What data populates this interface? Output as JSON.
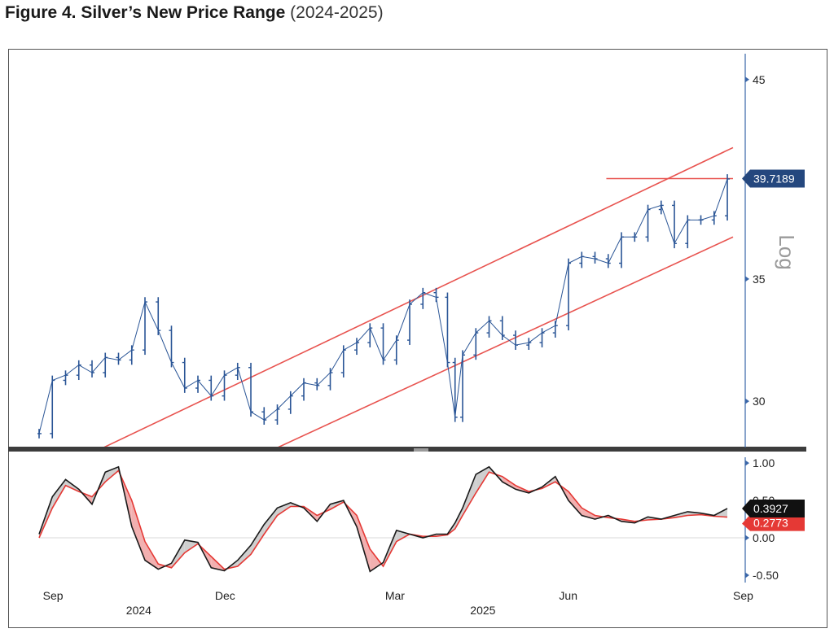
{
  "title": {
    "bold": "Figure 4. Silver’s New Price Range",
    "light": "(2024-2025)"
  },
  "colors": {
    "price": "#2a5596",
    "channel": "#e8534f",
    "osc_main": "#1a1a1a",
    "osc_signal": "#e53935",
    "fill_up": "#cfcfcf",
    "fill_down": "#f2b0b0",
    "axis": "#3a66a8",
    "badge_price": "#24477e",
    "badge_osc": "#111111"
  },
  "scale_label": "Log",
  "badges": {
    "price": "39.7189",
    "osc_main": "0.3927",
    "osc_signal_partial": "0.2773",
    "osc_hidden_tick": "0.50"
  },
  "chart_data": [
    {
      "type": "line",
      "style": "ohlc_bars",
      "yscale": "log",
      "ylim": [
        28.3,
        46.3
      ],
      "yticks": [
        30,
        35,
        45
      ],
      "ytick_labels": [
        "30",
        "35",
        "45"
      ],
      "xlim": [
        "2024-08-30",
        "2025-09-01"
      ],
      "x_ticks": [
        {
          "label": "Sep",
          "date": "2024-09-01"
        },
        {
          "label": "Dec",
          "date": "2024-12-01"
        },
        {
          "label": "Mar",
          "date": "2025-03-01"
        },
        {
          "label": "Jun",
          "date": "2025-06-01"
        },
        {
          "label": "Sep",
          "date": "2025-09-01"
        }
      ],
      "x_years": [
        {
          "label": "2024",
          "date": "2024-10-15"
        },
        {
          "label": "2025",
          "date": "2025-04-15"
        }
      ],
      "series": [
        {
          "x": [
            "2024-08-30",
            "2024-09-06",
            "2024-09-13",
            "2024-09-20",
            "2024-09-27",
            "2024-10-04",
            "2024-10-11",
            "2024-10-18",
            "2024-10-25",
            "2024-11-01",
            "2024-11-08",
            "2024-11-15",
            "2024-11-22",
            "2024-11-29",
            "2024-12-06",
            "2024-12-13",
            "2024-12-20",
            "2024-12-27",
            "2025-01-03",
            "2025-01-10",
            "2025-01-17",
            "2025-01-24",
            "2025-01-31",
            "2025-02-07",
            "2025-02-14",
            "2025-02-21",
            "2025-02-28",
            "2025-03-07",
            "2025-03-14",
            "2025-03-21",
            "2025-03-28",
            "2025-04-03",
            "2025-04-07",
            "2025-04-11",
            "2025-04-18",
            "2025-04-25",
            "2025-05-02",
            "2025-05-09",
            "2025-05-16",
            "2025-05-23",
            "2025-05-30",
            "2025-06-06",
            "2025-06-13",
            "2025-06-20",
            "2025-06-27",
            "2025-07-04",
            "2025-07-11",
            "2025-07-18",
            "2025-07-25",
            "2025-08-01",
            "2025-08-08",
            "2025-08-15",
            "2025-08-22",
            "2025-08-29"
          ],
          "y": [
            28.8,
            30.8,
            31.0,
            31.4,
            31.1,
            31.7,
            31.6,
            32.0,
            34.0,
            32.8,
            31.5,
            30.5,
            30.8,
            30.2,
            31.0,
            31.3,
            29.6,
            29.3,
            29.7,
            30.2,
            30.7,
            30.6,
            31.1,
            32.0,
            32.3,
            32.9,
            31.6,
            32.4,
            33.9,
            34.4,
            34.2,
            31.5,
            29.4,
            31.8,
            32.7,
            33.2,
            32.6,
            32.2,
            32.3,
            32.7,
            33.0,
            35.7,
            36.0,
            35.9,
            35.7,
            36.9,
            36.9,
            38.2,
            38.4,
            36.6,
            37.7,
            37.7,
            37.9,
            39.7
          ]
        }
      ],
      "channel_lines": [
        {
          "x": [
            "2024-09-30",
            "2025-09-01"
          ],
          "y": [
            28.2,
            41.3
          ]
        },
        {
          "x": [
            "2024-12-31",
            "2025-09-01"
          ],
          "y": [
            28.2,
            36.9
          ]
        }
      ],
      "hline": {
        "x": [
          "2025-06-26",
          "2025-09-01"
        ],
        "y": 39.7189
      }
    },
    {
      "type": "line",
      "ylim": [
        -0.62,
        1.1
      ],
      "yticks": [
        -0.5,
        0,
        1.0
      ],
      "ytick_labels": [
        "-0.50",
        "0.00",
        "1.00"
      ],
      "series": [
        {
          "x": [
            "2024-08-30",
            "2024-09-06",
            "2024-09-13",
            "2024-09-20",
            "2024-09-27",
            "2024-10-04",
            "2024-10-11",
            "2024-10-18",
            "2024-10-25",
            "2024-11-01",
            "2024-11-08",
            "2024-11-15",
            "2024-11-22",
            "2024-11-29",
            "2024-12-06",
            "2024-12-13",
            "2024-12-20",
            "2024-12-27",
            "2025-01-03",
            "2025-01-10",
            "2025-01-17",
            "2025-01-24",
            "2025-01-31",
            "2025-02-07",
            "2025-02-14",
            "2025-02-21",
            "2025-02-28",
            "2025-03-07",
            "2025-03-14",
            "2025-03-21",
            "2025-03-28",
            "2025-04-03",
            "2025-04-07",
            "2025-04-11",
            "2025-04-18",
            "2025-04-25",
            "2025-05-02",
            "2025-05-09",
            "2025-05-16",
            "2025-05-23",
            "2025-05-30",
            "2025-06-06",
            "2025-06-13",
            "2025-06-20",
            "2025-06-27",
            "2025-07-04",
            "2025-07-11",
            "2025-07-18",
            "2025-07-25",
            "2025-08-01",
            "2025-08-08",
            "2025-08-15",
            "2025-08-22",
            "2025-08-29"
          ],
          "y": [
            0.05,
            0.55,
            0.78,
            0.65,
            0.45,
            0.88,
            0.95,
            0.15,
            -0.3,
            -0.42,
            -0.34,
            -0.03,
            -0.06,
            -0.4,
            -0.44,
            -0.3,
            -0.1,
            0.18,
            0.4,
            0.47,
            0.4,
            0.22,
            0.45,
            0.5,
            0.15,
            -0.45,
            -0.33,
            0.1,
            0.05,
            0.0,
            0.05,
            0.05,
            0.2,
            0.4,
            0.85,
            0.95,
            0.75,
            0.65,
            0.6,
            0.68,
            0.82,
            0.5,
            0.3,
            0.25,
            0.3,
            0.22,
            0.2,
            0.28,
            0.25,
            0.3,
            0.35,
            0.33,
            0.3,
            0.3927
          ]
        },
        {
          "x": [
            "2024-08-30",
            "2024-09-06",
            "2024-09-13",
            "2024-09-20",
            "2024-09-27",
            "2024-10-04",
            "2024-10-11",
            "2024-10-18",
            "2024-10-25",
            "2024-11-01",
            "2024-11-08",
            "2024-11-15",
            "2024-11-22",
            "2024-11-29",
            "2024-12-06",
            "2024-12-13",
            "2024-12-20",
            "2024-12-27",
            "2025-01-03",
            "2025-01-10",
            "2025-01-17",
            "2025-01-24",
            "2025-01-31",
            "2025-02-07",
            "2025-02-14",
            "2025-02-21",
            "2025-02-28",
            "2025-03-07",
            "2025-03-14",
            "2025-03-21",
            "2025-03-28",
            "2025-04-03",
            "2025-04-07",
            "2025-04-11",
            "2025-04-18",
            "2025-04-25",
            "2025-05-02",
            "2025-05-09",
            "2025-05-16",
            "2025-05-23",
            "2025-05-30",
            "2025-06-06",
            "2025-06-13",
            "2025-06-20",
            "2025-06-27",
            "2025-07-04",
            "2025-07-11",
            "2025-07-18",
            "2025-07-25",
            "2025-08-01",
            "2025-08-08",
            "2025-08-15",
            "2025-08-22",
            "2025-08-29"
          ],
          "y": [
            0.0,
            0.4,
            0.7,
            0.62,
            0.55,
            0.75,
            0.9,
            0.5,
            -0.05,
            -0.35,
            -0.4,
            -0.2,
            -0.08,
            -0.25,
            -0.42,
            -0.38,
            -0.22,
            0.05,
            0.3,
            0.42,
            0.42,
            0.3,
            0.38,
            0.48,
            0.3,
            -0.15,
            -0.38,
            -0.05,
            0.05,
            0.02,
            0.02,
            0.04,
            0.12,
            0.3,
            0.6,
            0.88,
            0.82,
            0.7,
            0.62,
            0.66,
            0.75,
            0.62,
            0.4,
            0.3,
            0.27,
            0.25,
            0.22,
            0.24,
            0.25,
            0.27,
            0.3,
            0.31,
            0.29,
            0.2773
          ]
        }
      ]
    }
  ]
}
